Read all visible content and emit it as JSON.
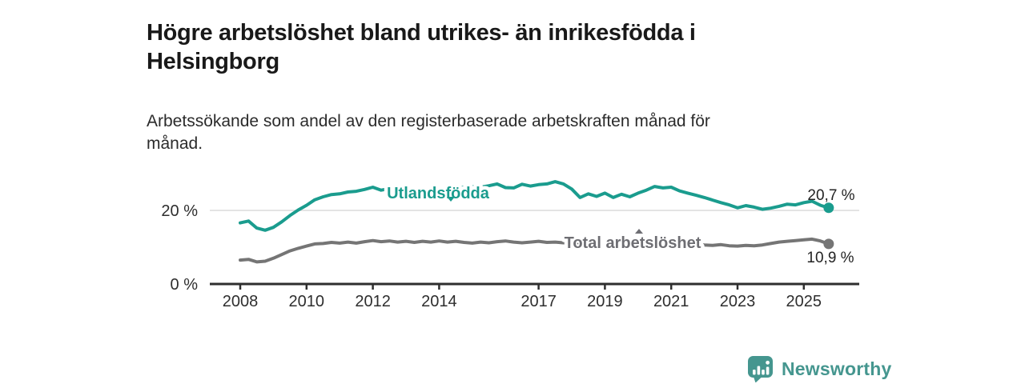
{
  "header": {
    "title": "Högre arbetslöshet bland utrikes- än inrikesfödda i\nHelsingborg",
    "subtitle": "Arbetssökande som andel av den registerbaserade arbetskraften månad för\nmånad."
  },
  "chart_data": {
    "type": "line",
    "title": "Högre arbetslöshet bland utrikes- än inrikesfödda i Helsingborg",
    "subtitle": "Arbetssökande som andel av den registerbaserade arbetskraften månad för månad.",
    "x_unit": "decimal_year",
    "x_start": 2008.0,
    "x_step": 0.25,
    "xlim": [
      2007.1,
      2026.2
    ],
    "ylim": [
      0,
      30
    ],
    "grid": "single-horizontal-gridline-at-20",
    "y_gridlines": [
      20
    ],
    "y_axis_labels": [
      {
        "value": 20,
        "label": "20 %"
      },
      {
        "value": 0,
        "label": "0 %"
      }
    ],
    "x_tick_labels": [
      "2008",
      "2010",
      "2012",
      "2014",
      "2017",
      "2019",
      "2021",
      "2023",
      "2025"
    ],
    "x_tick_years": [
      2008,
      2010,
      2012,
      2014,
      2017,
      2019,
      2021,
      2023,
      2025
    ],
    "legend_position": "inline-labels-on-lines",
    "series": [
      {
        "name": "Utlandsfödda",
        "color": "#1a9c8e",
        "end_value": 20.7,
        "end_label": "20,7 %",
        "values": [
          16.6,
          17.1,
          15.2,
          14.6,
          15.4,
          16.9,
          18.6,
          20.1,
          21.4,
          22.9,
          23.7,
          24.3,
          24.5,
          25.0,
          25.2,
          25.7,
          26.3,
          25.5,
          25.9,
          25.6,
          25.3,
          25.7,
          25.5,
          25.9,
          25.7,
          26.1,
          26.4,
          26.2,
          26.5,
          26.3,
          26.7,
          27.2,
          26.2,
          26.1,
          27.1,
          26.6,
          27.0,
          27.2,
          27.8,
          27.2,
          25.8,
          23.5,
          24.5,
          23.8,
          24.7,
          23.5,
          24.4,
          23.7,
          24.7,
          25.5,
          26.5,
          26.1,
          26.3,
          25.3,
          24.7,
          24.1,
          23.5,
          22.8,
          22.1,
          21.5,
          20.7,
          21.3,
          20.9,
          20.3,
          20.6,
          21.1,
          21.7,
          21.5,
          22.1,
          22.5,
          21.4,
          20.7
        ]
      },
      {
        "name": "Total arbetslöshet",
        "color": "#757575",
        "end_value": 10.9,
        "end_label": "10,9 %",
        "values": [
          6.5,
          6.7,
          6.0,
          6.2,
          7.0,
          8.0,
          9.0,
          9.7,
          10.3,
          10.9,
          11.0,
          11.3,
          11.1,
          11.4,
          11.1,
          11.5,
          11.8,
          11.5,
          11.7,
          11.4,
          11.6,
          11.3,
          11.6,
          11.4,
          11.7,
          11.4,
          11.6,
          11.3,
          11.1,
          11.4,
          11.2,
          11.5,
          11.7,
          11.4,
          11.2,
          11.4,
          11.6,
          11.3,
          11.4,
          11.2,
          11.1,
          10.9,
          11.0,
          10.8,
          10.9,
          10.7,
          10.9,
          11.0,
          11.3,
          11.9,
          12.1,
          11.9,
          11.7,
          11.4,
          11.1,
          10.8,
          10.6,
          10.5,
          10.7,
          10.4,
          10.3,
          10.5,
          10.4,
          10.6,
          11.0,
          11.4,
          11.6,
          11.8,
          12.0,
          12.2,
          11.7,
          10.9
        ]
      }
    ]
  },
  "footer": {
    "brand": "Newsworthy",
    "brand_color": "#45968f"
  }
}
